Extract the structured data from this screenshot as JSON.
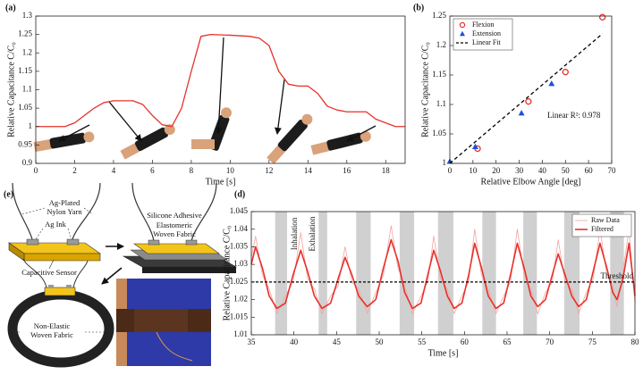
{
  "panels": [
    "(a)",
    "(b)",
    "(e)",
    "(d)"
  ],
  "diagram": {
    "labels": [
      "Ag-Plated",
      "Nylon Yarn",
      "Ag Ink",
      "Capacitive Sensor",
      "Silicone Adhesive",
      "Elastomeric",
      "Woven Fabric",
      "Non-Elastic",
      "Woven Fabric"
    ]
  },
  "chart_data": [
    {
      "type": "line",
      "xlabel": "Time [s]",
      "ylabel": "Relative Capacitance C/C₀",
      "x": [
        0,
        1,
        1.5,
        2,
        2.5,
        3,
        3.5,
        4,
        5,
        5.5,
        6,
        6.5,
        7,
        7.5,
        8,
        8.5,
        9,
        10,
        11,
        11.5,
        12,
        12.5,
        13,
        13.5,
        14,
        14.5,
        15,
        15.5,
        16,
        17,
        17.5,
        18,
        18.5,
        19
      ],
      "series": [
        {
          "color": "#e8302a",
          "linewidth": 1.3,
          "values": [
            1.0,
            1.0,
            1.0,
            1.01,
            1.03,
            1.05,
            1.065,
            1.07,
            1.07,
            1.06,
            1.03,
            1.005,
            1.0,
            1.05,
            1.15,
            1.245,
            1.25,
            1.248,
            1.245,
            1.24,
            1.22,
            1.15,
            1.115,
            1.11,
            1.11,
            1.09,
            1.055,
            1.045,
            1.04,
            1.04,
            1.02,
            1.01,
            1.0,
            1.0
          ]
        }
      ],
      "xlim": [
        0,
        19
      ],
      "ylim": [
        0.9,
        1.3
      ],
      "xticks": [
        0,
        2,
        4,
        6,
        8,
        10,
        12,
        14,
        16,
        18
      ],
      "yticks": [
        0.9,
        0.95,
        1,
        1.05,
        1.1,
        1.15,
        1.2,
        1.25,
        1.3
      ],
      "grid": false
    },
    {
      "type": "scatter",
      "xlabel": "Relative Elbow Angle [deg]",
      "ylabel": "Relative Capacitance C/C₀",
      "series": [
        {
          "name": "Flexion",
          "color": "#e8302a",
          "marker": "circle",
          "x": [
            12,
            34,
            50,
            66
          ],
          "values": [
            1.025,
            1.105,
            1.155,
            1.248
          ]
        },
        {
          "name": "Extension",
          "color": "#1f4fd8",
          "marker": "triangle",
          "x": [
            0,
            11,
            31,
            44
          ],
          "values": [
            1.003,
            1.028,
            1.085,
            1.135
          ]
        },
        {
          "name": "Linear Fit",
          "color": "#000000",
          "marker": "none",
          "linestyle": "dashed",
          "x": [
            0,
            66
          ],
          "values": [
            1.0,
            1.22
          ]
        }
      ],
      "annotations": [
        "Linear R²: 0.978"
      ],
      "xlim": [
        0,
        70
      ],
      "ylim": [
        1,
        1.25
      ],
      "xticks": [
        0,
        10,
        20,
        30,
        40,
        50,
        60,
        70
      ],
      "yticks": [
        1,
        1.05,
        1.1,
        1.15,
        1.2,
        1.25
      ],
      "legend": "top-left",
      "grid": false
    },
    {
      "type": "line",
      "xlabel": "Time [s]",
      "ylabel": "Relative Capacitance C/C₀",
      "x": [
        35,
        35.5,
        36.3,
        37.1,
        38.0,
        39.0,
        39.9,
        40.8,
        41.6,
        42.4,
        43.3,
        44.3,
        45.2,
        46.0,
        46.8,
        47.6,
        48.6,
        49.6,
        50.5,
        51.4,
        52.2,
        53.0,
        53.9,
        54.9,
        55.7,
        56.4,
        57.2,
        58.0,
        58.8,
        59.7,
        60.5,
        61.2,
        62.0,
        62.8,
        63.7,
        64.6,
        65.4,
        66.2,
        67.0,
        67.8,
        68.6,
        69.5,
        70.3,
        71.0,
        71.8,
        72.6,
        73.4,
        74.3,
        75.1,
        75.9,
        76.7,
        77.4,
        77.9,
        78.6,
        79.3,
        80
      ],
      "series": [
        {
          "name": "Raw Data",
          "color": "#f5a3a0",
          "linewidth": 0.8,
          "values": [
            1.032,
            1.038,
            1.027,
            1.023,
            1.016,
            1.021,
            1.025,
            1.039,
            1.026,
            1.023,
            1.016,
            1.021,
            1.024,
            1.035,
            1.025,
            1.023,
            1.016,
            1.022,
            1.027,
            1.041,
            1.029,
            1.024,
            1.016,
            1.021,
            1.025,
            1.038,
            1.026,
            1.023,
            1.016,
            1.021,
            1.025,
            1.04,
            1.027,
            1.023,
            1.016,
            1.021,
            1.025,
            1.04,
            1.027,
            1.023,
            1.016,
            1.022,
            1.025,
            1.037,
            1.025,
            1.023,
            1.016,
            1.022,
            1.026,
            1.04,
            1.027,
            1.024,
            1.018,
            1.028,
            1.04,
            1.019
          ]
        },
        {
          "name": "Filtered",
          "color": "#e8302a",
          "linewidth": 1.6,
          "values": [
            1.03,
            1.035,
            1.029,
            1.021,
            1.0175,
            1.019,
            1.027,
            1.034,
            1.028,
            1.021,
            1.0175,
            1.019,
            1.026,
            1.032,
            1.027,
            1.021,
            1.018,
            1.02,
            1.029,
            1.037,
            1.031,
            1.022,
            1.0175,
            1.019,
            1.027,
            1.034,
            1.028,
            1.021,
            1.0175,
            1.019,
            1.027,
            1.036,
            1.029,
            1.021,
            1.0175,
            1.019,
            1.027,
            1.036,
            1.029,
            1.021,
            1.018,
            1.02,
            1.027,
            1.033,
            1.027,
            1.021,
            1.018,
            1.02,
            1.028,
            1.036,
            1.029,
            1.022,
            1.02,
            1.026,
            1.036,
            1.021
          ]
        }
      ],
      "shaded_x": [
        [
          37.8,
          39.2
        ],
        [
          42.9,
          43.9
        ],
        [
          47.3,
          49.0
        ],
        [
          52.4,
          54.1
        ],
        [
          56.9,
          58.7
        ],
        [
          62.1,
          63.7
        ],
        [
          66.9,
          68.5
        ],
        [
          71.7,
          73.5
        ],
        [
          77.1,
          78.7
        ]
      ],
      "shaded_color": "#d0d0d0",
      "hlines": [
        {
          "value": 1.025,
          "label": "Threshold",
          "linestyle": "dashed",
          "color": "#000000"
        }
      ],
      "annotations": [
        "Inhalation",
        "Exhalation"
      ],
      "xlim": [
        35,
        80
      ],
      "ylim": [
        1.01,
        1.045
      ],
      "xticks": [
        35,
        40,
        45,
        50,
        55,
        60,
        65,
        70,
        75,
        80
      ],
      "yticks": [
        1.01,
        1.015,
        1.02,
        1.025,
        1.03,
        1.035,
        1.04,
        1.045
      ],
      "legend": "top-right",
      "grid": false
    }
  ]
}
